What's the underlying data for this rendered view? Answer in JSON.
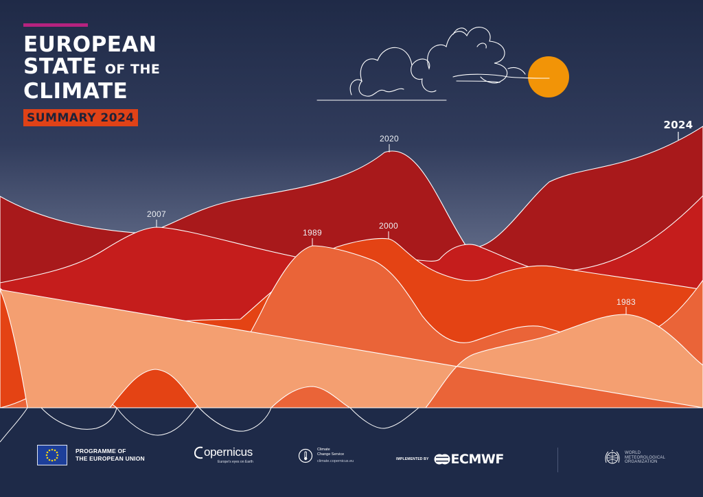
{
  "title": {
    "line1": "EUROPEAN",
    "line2_main": "STATE",
    "line2_small": "OF THE",
    "line3": "CLIMATE",
    "badge": "SUMMARY 2024"
  },
  "year_labels": [
    "2007",
    "2020",
    "1989",
    "2000",
    "1983",
    "2024"
  ],
  "colors": {
    "sky_top": "#1f2a47",
    "sky_bottom": "#7e88a0",
    "sea": "#1e2a48",
    "sun": "#f29407",
    "dark_red": "#a8191b",
    "red": "#c51d1c",
    "orange_red": "#e44314",
    "coral": "#ea6438",
    "peach": "#f49f71",
    "title_accent_bar": "#b5227f"
  },
  "footer": {
    "eu_line1": "PROGRAMME OF",
    "eu_line2": "THE EUROPEAN UNION",
    "copernicus": "opernicus",
    "copernicus_tagline": "Europe's eyes on Earth",
    "c3s_line1": "Climate",
    "c3s_line2": "Change Service",
    "c3s_url": "climate.copernicus.eu",
    "ecmwf_prefix": "IMPLEMENTED BY",
    "ecmwf": "ECMWF",
    "wmo_line1": "WORLD",
    "wmo_line2": "METEOROLOGICAL",
    "wmo_line3": "ORGANIZATION"
  },
  "icons": [
    "cloud-icon",
    "sun-icon",
    "eu-flag-icon",
    "copernicus-mark-icon",
    "c3s-mark-icon",
    "ecmwf-mark-icon",
    "wmo-emblem-icon"
  ]
}
